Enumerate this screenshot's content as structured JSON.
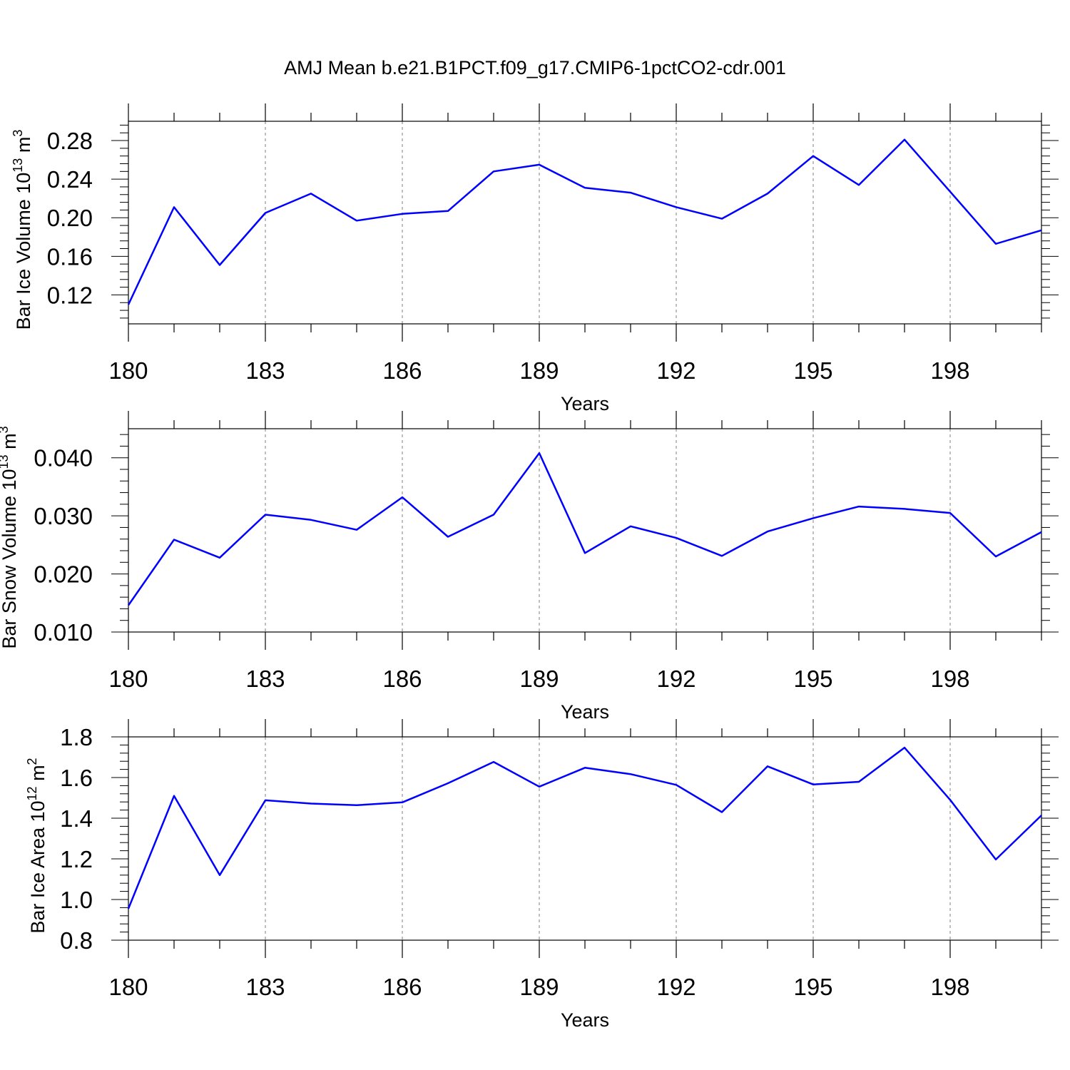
{
  "title": "AMJ Mean b.e21.B1PCT.f09_g17.CMIP6-1pctCO2-cdr.001",
  "colors": {
    "line": "#0000ff",
    "axis": "#000000",
    "grid": "#7f7f7f"
  },
  "chart_data": [
    {
      "type": "line",
      "ylabel": {
        "text": "Bar Ice Volume 10",
        "sup": "13",
        "unit": " m",
        "unit_sup": "3"
      },
      "xlabel": "Years",
      "xlim": [
        180,
        200
      ],
      "ylim": [
        0.09,
        0.3
      ],
      "xticks": [
        "180",
        "183",
        "186",
        "189",
        "192",
        "195",
        "198"
      ],
      "yticks": [
        "0.12",
        "0.16",
        "0.20",
        "0.24",
        "0.28"
      ],
      "grid": "vertical dashed at major x ticks",
      "x": [
        180,
        181,
        182,
        183,
        184,
        185,
        186,
        187,
        188,
        189,
        190,
        191,
        192,
        193,
        194,
        195,
        196,
        197,
        198,
        199,
        200
      ],
      "values": [
        0.11,
        0.211,
        0.151,
        0.205,
        0.225,
        0.197,
        0.204,
        0.207,
        0.248,
        0.255,
        0.231,
        0.226,
        0.211,
        0.199,
        0.225,
        0.264,
        0.234,
        0.281,
        0.227,
        0.173,
        0.187
      ]
    },
    {
      "type": "line",
      "ylabel": {
        "text": "Bar Snow Volume 10",
        "sup": "13",
        "unit": " m",
        "unit_sup": "3"
      },
      "xlabel": "Years",
      "xlim": [
        180,
        200
      ],
      "ylim": [
        0.01,
        0.045
      ],
      "xticks": [
        "180",
        "183",
        "186",
        "189",
        "192",
        "195",
        "198"
      ],
      "yticks": [
        "0.010",
        "0.020",
        "0.030",
        "0.040"
      ],
      "grid": "vertical dashed at major x ticks",
      "x": [
        180,
        181,
        182,
        183,
        184,
        185,
        186,
        187,
        188,
        189,
        190,
        191,
        192,
        193,
        194,
        195,
        196,
        197,
        198,
        199,
        200
      ],
      "values": [
        0.0146,
        0.0259,
        0.0228,
        0.0302,
        0.0293,
        0.0276,
        0.0332,
        0.0264,
        0.0302,
        0.0408,
        0.0236,
        0.0282,
        0.0262,
        0.0231,
        0.0273,
        0.0296,
        0.0316,
        0.0312,
        0.0305,
        0.023,
        0.0272
      ]
    },
    {
      "type": "line",
      "ylabel": {
        "text": "Bar Ice Area 10",
        "sup": "12",
        "unit": " m",
        "unit_sup": "2"
      },
      "xlabel": "Years",
      "xlim": [
        180,
        200
      ],
      "ylim": [
        0.8,
        1.8
      ],
      "xticks": [
        "180",
        "183",
        "186",
        "189",
        "192",
        "195",
        "198"
      ],
      "yticks": [
        "0.8",
        "1.0",
        "1.2",
        "1.4",
        "1.6",
        "1.8"
      ],
      "grid": "vertical dashed at major x ticks",
      "x": [
        180,
        181,
        182,
        183,
        184,
        185,
        186,
        187,
        188,
        189,
        190,
        191,
        192,
        193,
        194,
        195,
        196,
        197,
        198,
        199,
        200
      ],
      "values": [
        0.955,
        1.51,
        1.12,
        1.488,
        1.472,
        1.464,
        1.478,
        1.572,
        1.677,
        1.555,
        1.648,
        1.617,
        1.564,
        1.43,
        1.655,
        1.566,
        1.579,
        1.747,
        1.49,
        1.197,
        1.414
      ]
    }
  ]
}
